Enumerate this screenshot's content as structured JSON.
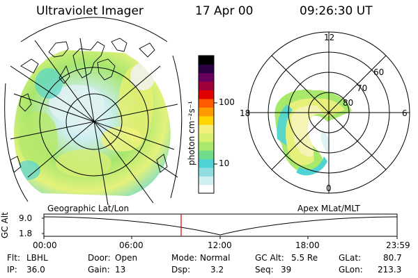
{
  "header": {
    "instrument": "Ultraviolet Imager",
    "date": "17 Apr 00",
    "time": "09:26:30 UT"
  },
  "colorbar": {
    "unit_label": "photon cm⁻²s⁻¹",
    "tick_100": "100",
    "tick_10": "10",
    "colors": [
      "#ffffff",
      "#cfeff0",
      "#8fdde0",
      "#4fd3d4",
      "#6edc8a",
      "#a8e86a",
      "#d8f070",
      "#f2f07a",
      "#ffd400",
      "#ff9a00",
      "#ff5a00",
      "#e00000",
      "#a0003c",
      "#6a005e",
      "#2a0040",
      "#000000"
    ]
  },
  "left_map": {
    "label": "Geographic Lat/Lon"
  },
  "right_map": {
    "label": "Apex MLat/MLT",
    "mlt_12": "12",
    "mlt_18": "18",
    "mlt_6": "6",
    "mlt_0": "0",
    "lat_60": "60",
    "lat_70": "70",
    "lat_80": "80"
  },
  "altitude_plot": {
    "axis_title": "GC Alt",
    "y_top": "9.0",
    "y_bottom": "1.8",
    "x_ticks": [
      "00:00",
      "06:00",
      "12:00",
      "18:00",
      "23:59"
    ]
  },
  "info": {
    "flt_label": "Flt:",
    "flt_value": "LBHL",
    "ip_label": "IP:",
    "ip_value": "36.0",
    "door_label": "Door:",
    "door_value": "Open",
    "gain_label": "Gain:",
    "gain_value": "13",
    "mode_label": "Mode:",
    "mode_value": "Normal",
    "dsp_label": "Dsp:",
    "dsp_value": "3.2",
    "gcalt_label": "GC Alt:",
    "gcalt_value": "5.5 Re",
    "seq_label": "Seq:",
    "seq_value": "39",
    "glat_label": "GLat:",
    "glat_value": "80.7",
    "glon_label": "GLon:",
    "glon_value": "213.3"
  },
  "colors": {
    "marker": "#d40000",
    "line": "#000000"
  }
}
